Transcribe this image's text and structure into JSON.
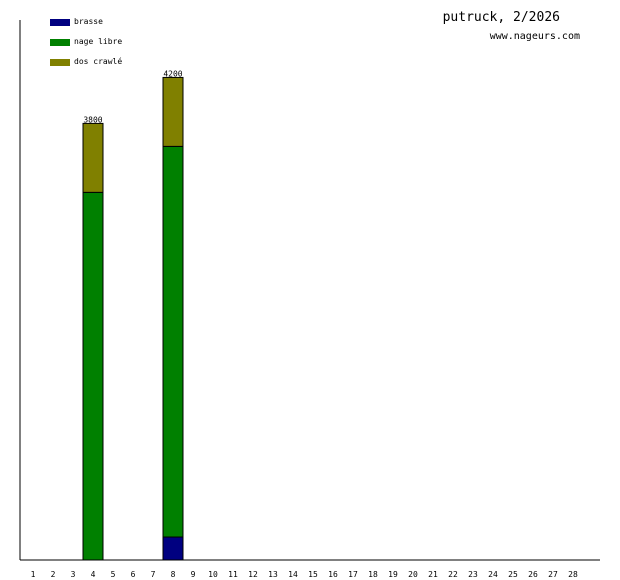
{
  "title": "putruck, 2/2026",
  "subtitle": "www.nageurs.com",
  "legend": [
    {
      "label": "brasse",
      "color": "#000080"
    },
    {
      "label": "nage libre",
      "color": "#008000"
    },
    {
      "label": "dos crawlé",
      "color": "#808000"
    }
  ],
  "chart_data": {
    "type": "bar",
    "stacked": true,
    "categories": [
      "1",
      "2",
      "3",
      "4",
      "5",
      "6",
      "7",
      "8",
      "9",
      "10",
      "11",
      "12",
      "13",
      "14",
      "15",
      "16",
      "17",
      "18",
      "19",
      "20",
      "21",
      "22",
      "23",
      "24",
      "25",
      "26",
      "27",
      "28"
    ],
    "series": [
      {
        "name": "brasse",
        "color": "#000080",
        "values": [
          0,
          0,
          0,
          0,
          0,
          0,
          0,
          200,
          0,
          0,
          0,
          0,
          0,
          0,
          0,
          0,
          0,
          0,
          0,
          0,
          0,
          0,
          0,
          0,
          0,
          0,
          0,
          0
        ]
      },
      {
        "name": "nage libre",
        "color": "#008000",
        "values": [
          0,
          0,
          0,
          3200,
          0,
          0,
          0,
          3400,
          0,
          0,
          0,
          0,
          0,
          0,
          0,
          0,
          0,
          0,
          0,
          0,
          0,
          0,
          0,
          0,
          0,
          0,
          0,
          0
        ]
      },
      {
        "name": "dos crawlé",
        "color": "#808000",
        "values": [
          0,
          0,
          0,
          600,
          0,
          0,
          0,
          600,
          0,
          0,
          0,
          0,
          0,
          0,
          0,
          0,
          0,
          0,
          0,
          0,
          0,
          0,
          0,
          0,
          0,
          0,
          0,
          0
        ]
      }
    ],
    "totals": [
      {
        "category": "4",
        "label": "3800"
      },
      {
        "category": "8",
        "label": "4200"
      }
    ],
    "ylim": [
      0,
      4700
    ],
    "legend_position": "top-left",
    "grid": false
  }
}
